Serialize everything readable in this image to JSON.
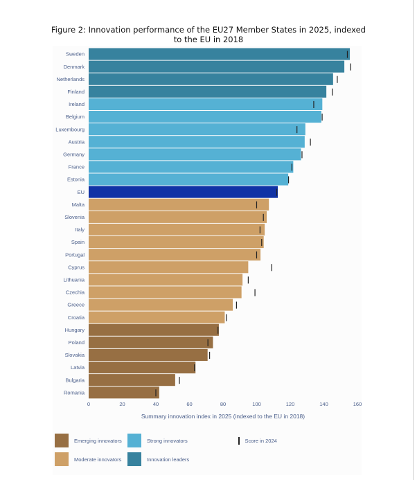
{
  "chart_data": {
    "type": "bar",
    "orientation": "horizontal",
    "title": "Figure 2: Innovation performance of the EU27 Member States in 2025, indexed to the EU in 2018",
    "xlabel": "Summary innovation index in 2025 (indexed to the EU in 2018)",
    "ylabel": "",
    "xlim": [
      0,
      160
    ],
    "xticks": [
      0,
      20,
      40,
      60,
      80,
      100,
      120,
      140,
      160
    ],
    "grid": false,
    "legend_position": "bottom",
    "categories": [
      "Sweden",
      "Denmark",
      "Netherlands",
      "Finland",
      "Ireland",
      "Belgium",
      "Luxembourg",
      "Austria",
      "Germany",
      "France",
      "Estonia",
      "EU",
      "Malta",
      "Slovenia",
      "Italy",
      "Spain",
      "Portugal",
      "Cyprus",
      "Lithuania",
      "Czechia",
      "Greece",
      "Croatia",
      "Hungary",
      "Poland",
      "Slovakia",
      "Latvia",
      "Bulgaria",
      "Romania"
    ],
    "values": [
      155.5,
      152.2,
      145.5,
      141.5,
      139.1,
      138.5,
      129.0,
      128.6,
      126.4,
      121.8,
      118.8,
      112.6,
      107.3,
      106.0,
      104.8,
      104.2,
      102.3,
      95.0,
      91.6,
      91.0,
      85.8,
      81.0,
      77.5,
      74.0,
      70.8,
      63.6,
      51.5,
      42.0
    ],
    "score_2024": [
      154.0,
      156.0,
      148.0,
      145.0,
      134.0,
      139.0,
      124.0,
      132.0,
      127.0,
      121.0,
      119.0,
      112.0,
      100.0,
      104.0,
      102.0,
      103.0,
      100.0,
      109.0,
      95.0,
      99.0,
      88.0,
      82.0,
      77.0,
      71.0,
      72.0,
      63.0,
      54.0,
      40.0
    ],
    "groups": [
      "leader",
      "leader",
      "leader",
      "leader",
      "strong",
      "strong",
      "strong",
      "strong",
      "strong",
      "strong",
      "strong",
      "eu",
      "moderate",
      "moderate",
      "moderate",
      "moderate",
      "moderate",
      "moderate",
      "moderate",
      "moderate",
      "moderate",
      "moderate",
      "emerging",
      "emerging",
      "emerging",
      "emerging",
      "emerging",
      "emerging"
    ],
    "colors": {
      "leader": "#37829e",
      "strong": "#55b1d4",
      "moderate": "#cea067",
      "emerging": "#976f43",
      "eu": "#1032a5",
      "score_marker": "#222222"
    },
    "legend": [
      {
        "key": "emerging",
        "label": "Emerging innovators"
      },
      {
        "key": "strong",
        "label": "Strong innovators"
      },
      {
        "key": "score",
        "label": "Score in 2024"
      },
      {
        "key": "moderate",
        "label": "Moderate innovators"
      },
      {
        "key": "leader",
        "label": "Innovation leaders"
      }
    ]
  }
}
